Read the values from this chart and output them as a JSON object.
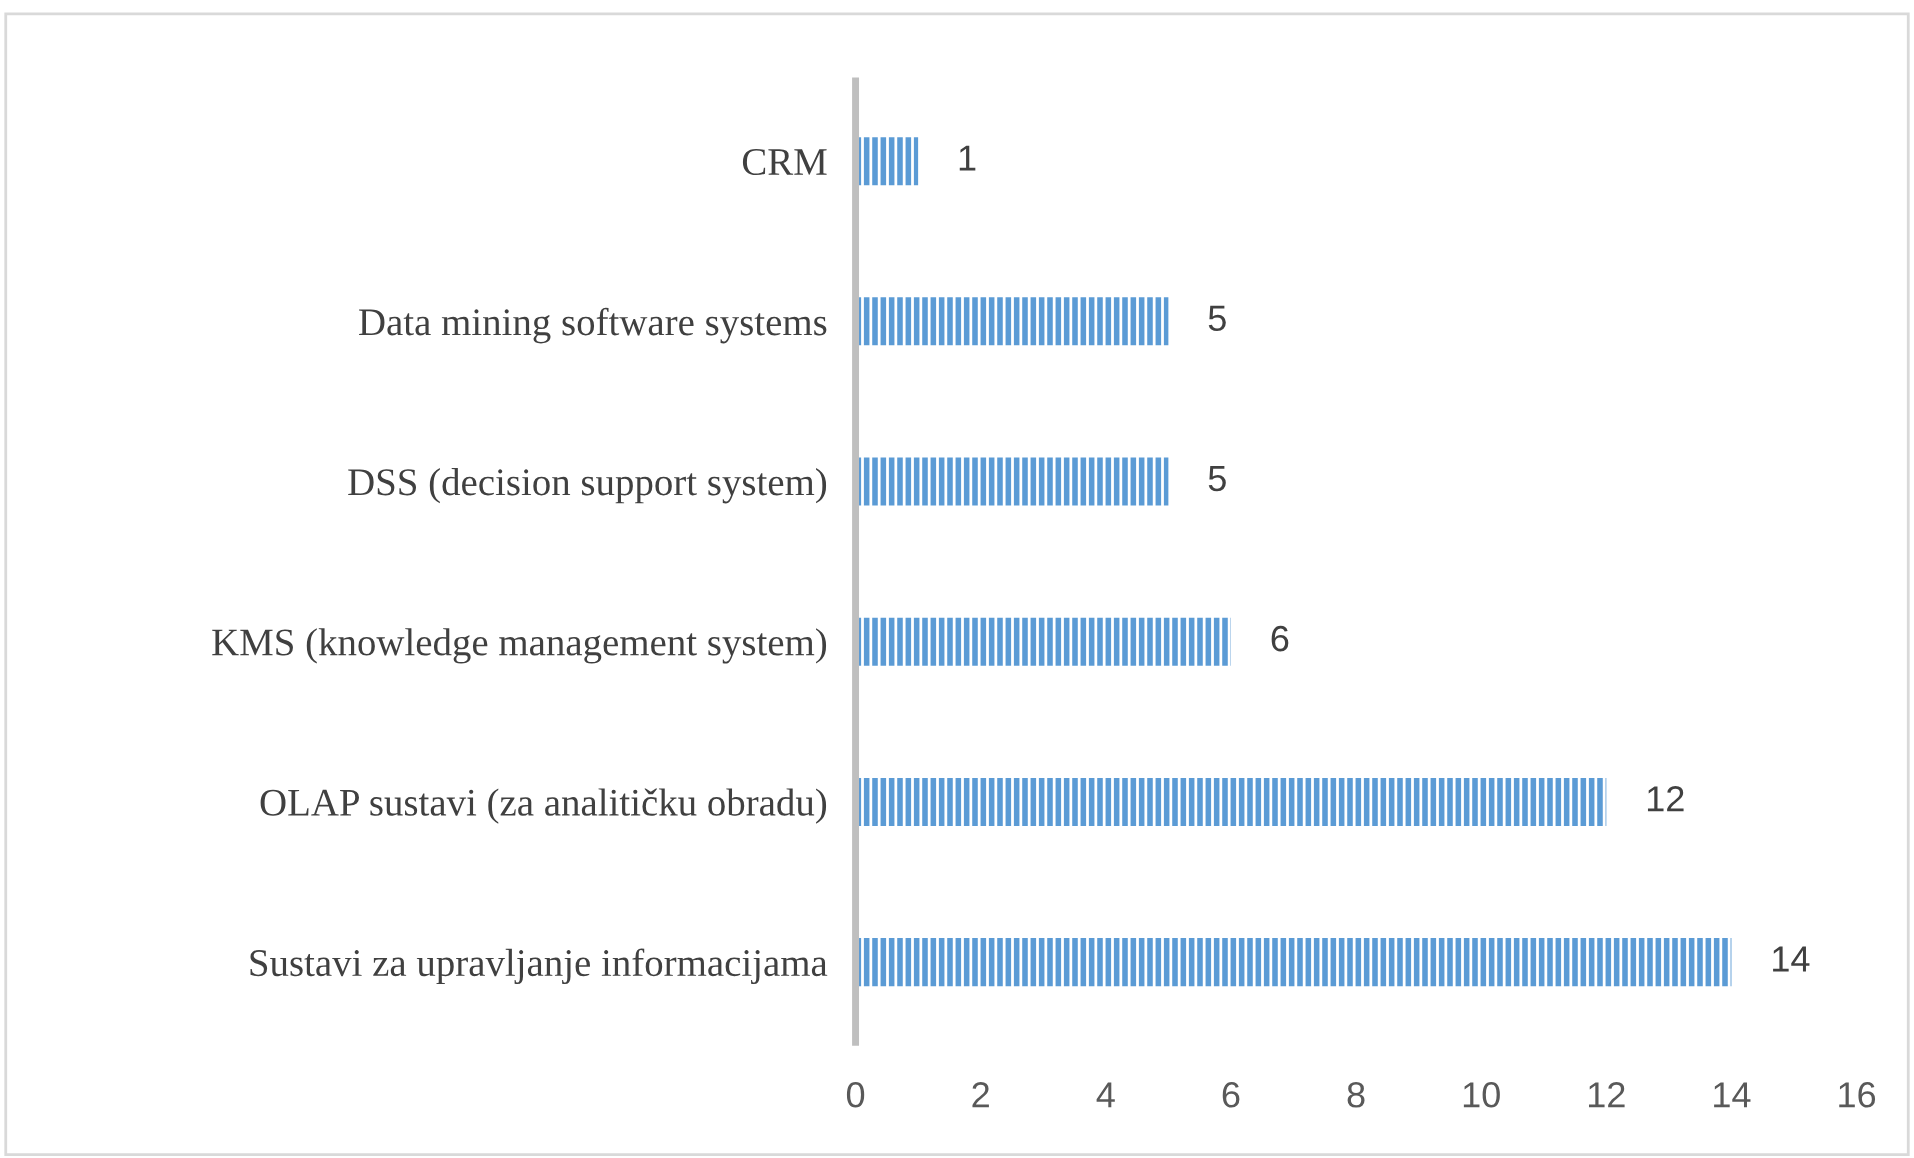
{
  "chart_data": {
    "type": "bar",
    "orientation": "horizontal",
    "categories": [
      "CRM",
      "Data mining software systems",
      "DSS (decision support system)",
      "KMS (knowledge management system)",
      "OLAP sustavi (za analitičku obradu)",
      "Sustavi za upravljanje informacijama"
    ],
    "values": [
      1,
      5,
      5,
      6,
      12,
      14
    ],
    "color": "#5b9bd5",
    "xlim": [
      0,
      16
    ],
    "xticks": [
      0,
      2,
      4,
      6,
      8,
      10,
      12,
      14,
      16
    ],
    "grid": false,
    "data_labels": true
  }
}
